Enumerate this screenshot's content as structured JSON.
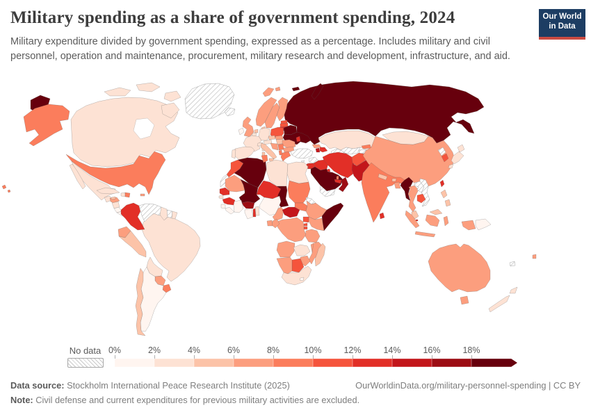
{
  "header": {
    "title": "Military spending as a share of government spending, 2024",
    "subtitle": "Military expenditure divided by government spending, expressed as a percentage. Includes military and civil personnel, operation and maintenance, procurement, military research and development, infrastructure, and aid.",
    "logo_line1": "Our World",
    "logo_line2": "in Data",
    "logo_bg": "#1d3d63",
    "logo_stripe": "#cb4b42"
  },
  "legend": {
    "no_data_label": "No data",
    "ticks": [
      "0%",
      "2%",
      "4%",
      "6%",
      "8%",
      "10%",
      "12%",
      "14%",
      "16%",
      "18%"
    ]
  },
  "footer": {
    "source_label": "Data source:",
    "source_text": " Stockholm International Peace Research Institute (2025)",
    "credit": "OurWorldinData.org/military-personnel-spending | CC BY",
    "note_label": "Note:",
    "note_text": " Civil defense and current expenditures for previous military activities are excluded."
  },
  "chart_data": {
    "type": "choropleth_map",
    "title": "Military spending as a share of government spending",
    "year": "2024",
    "unit": "%",
    "legend_position": "bottom",
    "no_data": {
      "label": "No data",
      "style": "diagonal-hatch"
    },
    "bins": [
      {
        "label": "0-2%",
        "color": "#fff5f0"
      },
      {
        "label": "2-4%",
        "color": "#fde2d4"
      },
      {
        "label": "4-6%",
        "color": "#fcc3a8"
      },
      {
        "label": "6-8%",
        "color": "#fc9e7e"
      },
      {
        "label": "8-10%",
        "color": "#fb7d5c"
      },
      {
        "label": "10-12%",
        "color": "#f5543c"
      },
      {
        "label": "12-14%",
        "color": "#e22f27"
      },
      {
        "label": "14-16%",
        "color": "#c3161b"
      },
      {
        "label": "16-18%",
        "color": "#9c0d14"
      },
      {
        "label": "18%+",
        "color": "#67000d"
      }
    ],
    "countries": {
      "canada": "2-4%",
      "usa": "8-10%",
      "mexico": "2-4%",
      "guatemala": "2-4%",
      "honduras": "6-8%",
      "nicaragua": "2-4%",
      "costa-rica": "0-2%",
      "panama": "0-2%",
      "cuba": "2-4%",
      "jamaica": "4-6%",
      "haiti": "2-4%",
      "dominican-republic": "8-10%",
      "puerto-rico": "6-8%",
      "colombia": "12-14%",
      "venezuela": "No data",
      "guyana": "2-4%",
      "suriname": "No data",
      "french-guiana": "2-4%",
      "ecuador": "6-8%",
      "peru": "4-6%",
      "brazil": "2-4%",
      "bolivia": "2-4%",
      "paraguay": "6-8%",
      "uruguay": "8-10%",
      "argentina": "0-2%",
      "chile": "4-6%",
      "greenland": "No data",
      "iceland": "No data",
      "norway": "6-8%",
      "sweden": "6-8%",
      "finland": "6-8%",
      "denmark": "4-6%",
      "uk": "6-8%",
      "ireland": "0-2%",
      "netherlands": "4-6%",
      "belgium": "2-4%",
      "germany": "2-4%",
      "france": "2-4%",
      "spain": "2-4%",
      "portugal": "2-4%",
      "switzerland": "2-4%",
      "austria": "2-4%",
      "czechia": "4-6%",
      "slovakia": "6-8%",
      "poland": "10-12%",
      "estonia": "10-12%",
      "latvia": "10-12%",
      "lithuania": "12-14%",
      "belarus": "18%+",
      "ukraine": "18%+",
      "moldova": "12-14%",
      "hungary": "4-6%",
      "romania": "6-8%",
      "bulgaria": "6-8%",
      "serbia": "8-10%",
      "croatia-bosnia": "6-8%",
      "albania": "8-10%",
      "greece": "8-10%",
      "italy": "4-6%",
      "russia": "18%+",
      "kazakhstan": "2-4%",
      "uzbekistan": "No data",
      "turkmenistan": "No data",
      "kyrgyzstan": "8-10%",
      "tajikistan": "No data",
      "georgia": "6-8%",
      "armenia": "14-16%",
      "azerbaijan": "12-14%",
      "turkey": "No data",
      "cyprus": "No data",
      "syria": "No data",
      "israel": "12-14%",
      "jordan": "12-14%",
      "iraq": "12-14%",
      "kuwait": "12-14%",
      "qatar": "8-10%",
      "saudi-arabia": "18%+",
      "yemen": "No data",
      "oman": "16-18%",
      "uae": "12-14%",
      "iran": "12-14%",
      "afghanistan": "10-12%",
      "pakistan": "14-16%",
      "india": "8-10%",
      "nepal": "4-6%",
      "bhutan": "4-6%",
      "bangladesh": "6-8%",
      "sri-lanka": "12-14%",
      "myanmar": "18%+",
      "thailand": "6-8%",
      "laos": "No data",
      "vietnam": "No data",
      "cambodia": "10-12%",
      "malaysia": "4-6%",
      "singapore": "12-14%",
      "indonesia": "6-8%",
      "philippines": "4-6%",
      "papua-new-guinea": "0-2%",
      "mongolia": "2-4%",
      "china": "6-8%",
      "north-korea": "No data",
      "south-korea": "10-12%",
      "japan": "2-4%",
      "taiwan": "12-14%",
      "morocco": "10-12%",
      "western-sahara": "No data",
      "algeria": "18%+",
      "tunisia": "8-10%",
      "libya": "2-4%",
      "egypt": "2-4%",
      "mauritania": "6-8%",
      "mali": "18%+",
      "niger": "12-14%",
      "chad": "18%+",
      "sudan": "8-10%",
      "south-sudan": "8-10%",
      "eritrea": "No data",
      "djibouti": "No data",
      "ethiopia": "6-8%",
      "somalia": "18%+",
      "kenya": "6-8%",
      "uganda": "10-12%",
      "rwanda": "10-12%",
      "burundi": "10-12%",
      "senegal": "12-14%",
      "guinea-bissau": "2-4%",
      "guinea": "12-14%",
      "sierra-leone": "0-2%",
      "liberia": "0-2%",
      "ivory-coast": "0-2%",
      "burkina-faso": "16-18%",
      "ghana": "0-2%",
      "togo": "12-14%",
      "benin": "2-4%",
      "nigeria": "0-2%",
      "cameroon": "6-8%",
      "central-african-republic": "14-16%",
      "congo": "6-8%",
      "gabon": "6-8%",
      "drc": "6-8%",
      "tanzania": "6-8%",
      "angola": "6-8%",
      "zambia": "2-4%",
      "malawi": "6-8%",
      "mozambique": "6-8%",
      "zimbabwe": "6-8%",
      "botswana": "10-12%",
      "namibia": "6-8%",
      "south-africa": "2-4%",
      "lesotho": "0-2%",
      "madagascar": "4-6%",
      "australia": "6-8%",
      "new-zealand": "2-4%",
      "fiji": "6-8%",
      "new-caledonia": "No data"
    }
  }
}
